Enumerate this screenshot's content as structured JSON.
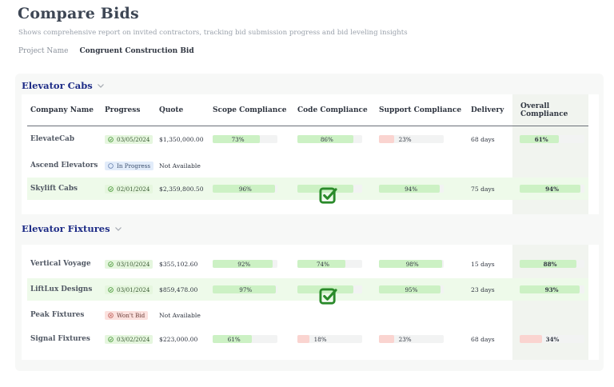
{
  "header": {
    "title": "Compare Bids",
    "subtitle": "Shows comprehensive report on invited contractors, tracking bid submission progress and bid leveling insights",
    "project_label": "Project Name",
    "project_value": "Congruent Construction Bid"
  },
  "columns": {
    "company": "Company Name",
    "progress": "Progress",
    "quote": "Quote",
    "scope": "Scope Compliance",
    "code": "Code Compliance",
    "support": "Support Compliance",
    "delivery": "Delivery",
    "overall": "Overall Compliance"
  },
  "colors": {
    "group_title": "#1d2b86",
    "bar_good": "#ccf1c4",
    "bar_bad": "#fad4d0",
    "check": "#2a8a2a"
  },
  "groups": [
    {
      "title": "Elevator Cabs",
      "rows": [
        {
          "name": "ElevateCab",
          "status": "done",
          "date": "03/05/2024",
          "quote": "$1,350,000.00",
          "scope": {
            "value": 0.73,
            "label": "73%",
            "tone": "g"
          },
          "code": {
            "value": 0.86,
            "label": "86%",
            "tone": "g"
          },
          "support": {
            "value": 0.23,
            "label": "23%",
            "tone": "r"
          },
          "delivery": "68 days",
          "overall": {
            "value": 0.61,
            "label": "61%",
            "tone": "g"
          },
          "highlight": false
        },
        {
          "name": "Ascend Elevators",
          "status": "prog",
          "status_text": "In Progress",
          "quote": "Not Available",
          "highlight": false
        },
        {
          "name": "Skylift Cabs",
          "status": "done",
          "date": "02/01/2024",
          "quote": "$2,359,800.50",
          "scope": {
            "value": 0.96,
            "label": "96%",
            "tone": "g"
          },
          "code": {
            "value": 0.86,
            "tone": "g",
            "check": true
          },
          "support": {
            "value": 0.94,
            "label": "94%",
            "tone": "g"
          },
          "delivery": "75 days",
          "overall": {
            "value": 0.94,
            "label": "94%",
            "tone": "g"
          },
          "highlight": true
        }
      ]
    },
    {
      "title": "Elevator Fixtures",
      "rows": [
        {
          "name": "Vertical Voyage",
          "status": "done",
          "date": "03/10/2024",
          "quote": "$355,102.60",
          "scope": {
            "value": 0.92,
            "label": "92%",
            "tone": "g"
          },
          "code": {
            "value": 0.74,
            "label": "74%",
            "tone": "g"
          },
          "support": {
            "value": 0.98,
            "label": "98%",
            "tone": "g"
          },
          "delivery": "15 days",
          "overall": {
            "value": 0.88,
            "label": "88%",
            "tone": "g"
          },
          "highlight": false
        },
        {
          "name": "LiftLux Designs",
          "status": "done",
          "date": "03/01/2024",
          "quote": "$859,478.00",
          "scope": {
            "value": 0.97,
            "label": "97%",
            "tone": "g"
          },
          "code": {
            "value": 0.86,
            "tone": "g",
            "check": true
          },
          "support": {
            "value": 0.95,
            "label": "95%",
            "tone": "g"
          },
          "delivery": "23 days",
          "overall": {
            "value": 0.93,
            "label": "93%",
            "tone": "g"
          },
          "highlight": true
        },
        {
          "name": "Peak Fixtures",
          "status": "nobid",
          "status_text": "Won't Bid",
          "quote": "Not Available",
          "highlight": false
        },
        {
          "name": "Signal Fixtures",
          "status": "done",
          "date": "03/02/2024",
          "quote": "$223,000.00",
          "scope": {
            "value": 0.61,
            "label": "61%",
            "tone": "g"
          },
          "code": {
            "value": 0.18,
            "label": "18%",
            "tone": "r"
          },
          "support": {
            "value": 0.23,
            "label": "23%",
            "tone": "r"
          },
          "delivery": "68 days",
          "overall": {
            "value": 0.34,
            "label": "34%",
            "tone": "r"
          },
          "highlight": false
        }
      ]
    }
  ]
}
